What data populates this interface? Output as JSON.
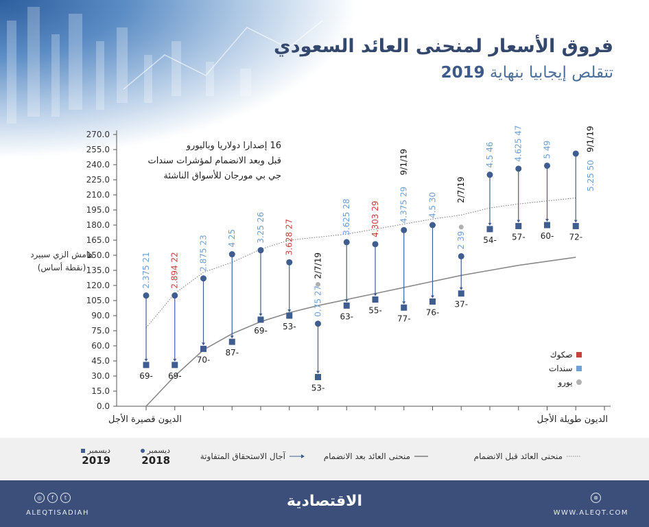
{
  "header": {
    "title": "فروق الأسعار لمنحنى العائد السعودي",
    "subtitle_text": "تتقلص إيجابيا بنهاية",
    "subtitle_year": "2019"
  },
  "annotation": [
    "16 إصدارا دولاريا وباليورو",
    "قبل وبعد الانضمام لمؤشرات سندات",
    "جي بي مورجان للأسواق الناشئة"
  ],
  "chart_data": {
    "type": "scatter",
    "title": "فروق الأسعار لمنحنى العائد السعودي",
    "ylabel": [
      "هامش الزي سبيرد",
      "(نقطة أساس)"
    ],
    "xlabel_left": "الديون قصيرة الأجل",
    "xlabel_right": "الديون طويلة الأجل",
    "ylim": [
      0,
      270
    ],
    "yticks": [
      "0.0",
      "15.0",
      "30.0",
      "45.0",
      "60.0",
      "75.0",
      "90.0",
      "105.0",
      "120.0",
      "135.0",
      "150.0",
      "165.0",
      "180.0",
      "195.0",
      "210.0",
      "225.0",
      "240.0",
      "255.0",
      "270.0"
    ],
    "grid": false,
    "points": [
      {
        "label": "2.375  21",
        "type": "sukuk_bond",
        "kind": "bond",
        "dec2018": 110,
        "dec2019": 41,
        "change": "69-"
      },
      {
        "label": "2.894  22",
        "kind": "sukuk",
        "dec2018": 110,
        "dec2019": 41,
        "change": "69-"
      },
      {
        "label": "2.875  23",
        "kind": "bond",
        "dec2018": 127,
        "dec2019": 57,
        "change": "70-"
      },
      {
        "label": "4  25",
        "kind": "bond",
        "dec2018": 151,
        "dec2019": 64,
        "change": "87-"
      },
      {
        "label": "3.25  26",
        "kind": "bond",
        "dec2018": 155,
        "dec2019": 86,
        "change": "69-"
      },
      {
        "label": "3.628  27",
        "kind": "sukuk",
        "dec2018": 143,
        "dec2019": 90,
        "change": "53-"
      },
      {
        "label": "0.75  27",
        "kind": "bond",
        "dec2018": 82,
        "dec2019": 29,
        "change": "53-",
        "euro_issue": 121,
        "date": "2/7/19"
      },
      {
        "label": "3.625  28",
        "kind": "bond",
        "dec2018": 163,
        "dec2019": 100,
        "change": "63-"
      },
      {
        "label": "4.303  29",
        "kind": "sukuk",
        "dec2018": 161,
        "dec2019": 106,
        "change": "55-"
      },
      {
        "label": "4.375  29",
        "kind": "bond",
        "dec2018": 175,
        "dec2019": 98,
        "change": "77-",
        "date": "9/1/19"
      },
      {
        "label": "4.5  30",
        "kind": "bond",
        "dec2018": 180,
        "dec2019": 104,
        "change": "76-"
      },
      {
        "label": "2  39",
        "kind": "bond",
        "dec2018": 149,
        "dec2019": 112,
        "change": "37-",
        "euro_issue": 178,
        "date": "2/7/19"
      },
      {
        "label": "4.5  46",
        "kind": "bond",
        "dec2018": 230,
        "dec2019": 176,
        "change": "54-"
      },
      {
        "label": "4.625  47",
        "kind": "bond",
        "dec2018": 236,
        "dec2019": 179,
        "change": "57-"
      },
      {
        "label": "5  49",
        "kind": "bond",
        "dec2018": 239,
        "dec2019": 180,
        "change": "60-"
      },
      {
        "label": "5.25  50",
        "kind": "bond",
        "dec2018": 251,
        "dec2019": 179,
        "change": "72-",
        "date": "9/1/19"
      }
    ],
    "series": [
      {
        "name": "منحنى العائد قبل الانضمام",
        "style": "dotted",
        "values": [
          78,
          112,
          133,
          143,
          156,
          165,
          168,
          171,
          176,
          181,
          186,
          190,
          197,
          201,
          204,
          207
        ]
      },
      {
        "name": "منحنى العائد بعد الانضمام",
        "style": "solid",
        "values": [
          0,
          30,
          56,
          72,
          84,
          93,
          100,
          106,
          112,
          118,
          124,
          130,
          135,
          140,
          144,
          148
        ]
      }
    ],
    "colors": {
      "sukuk": "#c8423b",
      "bond": "#6fa0d6",
      "euro": "#b0b0b0",
      "marker": "#3f5d91",
      "curve": "#8a8a8a",
      "axis": "#555555"
    }
  },
  "legend_right": [
    {
      "label": "صكوك",
      "color": "#c8423b"
    },
    {
      "label": "سندات",
      "color": "#6fa0d6"
    },
    {
      "label": "يورو",
      "color": "#b0b0b0"
    }
  ],
  "legend_bottom": {
    "before": "منحنى العائد قبل الانضمام",
    "after": "منحنى العائد بعد الانضمام",
    "maturities": "آجال الاستحقاق المتفاوتة",
    "dec2018_month": "ديسمبر",
    "dec2018_year": "2018",
    "dec2019_month": "ديسمبر",
    "dec2019_year": "2019"
  },
  "footer": {
    "logo": "الاقتصادية",
    "handle": "ALEQTISADIAH",
    "website": "WWW.ALEQT.COM",
    "social_icons": [
      "instagram-icon",
      "facebook-icon",
      "twitter-icon"
    ]
  }
}
